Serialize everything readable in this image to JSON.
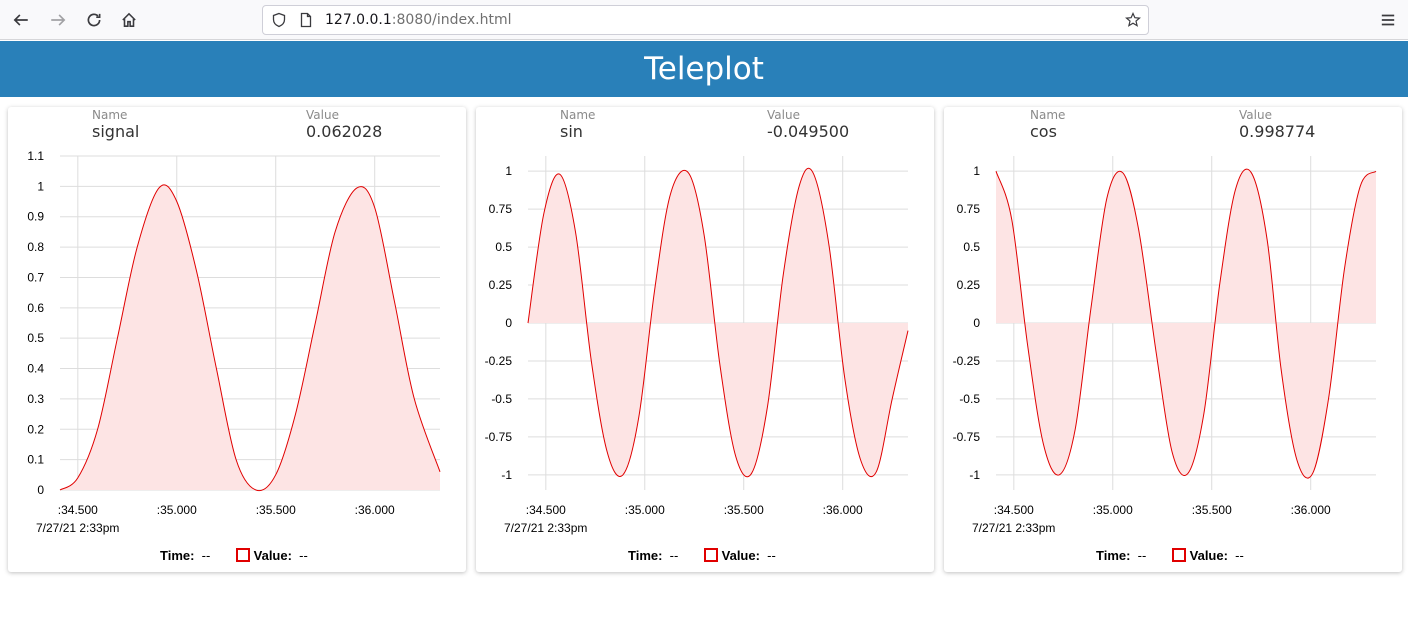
{
  "browser": {
    "url_host": "127.0.0.1",
    "url_rest": ":8080/index.html",
    "icons": [
      "back-arrow-icon",
      "forward-arrow-icon",
      "reload-icon",
      "home-icon",
      "shield-icon",
      "page-icon",
      "star-icon",
      "menu-icon"
    ]
  },
  "header": {
    "title": "Teleplot"
  },
  "panels": [
    {
      "name_label": "Name",
      "name": "signal",
      "value_label": "Value",
      "value": "0.062028",
      "legend": {
        "time_label": "Time:",
        "time_value": "--",
        "value_label": "Value:",
        "value_value": "--"
      }
    },
    {
      "name_label": "Name",
      "name": "sin",
      "value_label": "Value",
      "value": "-0.049500",
      "legend": {
        "time_label": "Time:",
        "time_value": "--",
        "value_label": "Value:",
        "value_value": "--"
      }
    },
    {
      "name_label": "Name",
      "name": "cos",
      "value_label": "Value",
      "value": "0.998774",
      "legend": {
        "time_label": "Time:",
        "time_value": "--",
        "value_label": "Value:",
        "value_value": "--"
      }
    }
  ],
  "colors": {
    "header": "#2980b9",
    "series_line": "#e00000",
    "series_fill": "#fde4e4",
    "grid": "#dddddd"
  },
  "chart_data": [
    {
      "type": "area",
      "title": "signal",
      "x_ticks": [
        ":34.500",
        ":35.000",
        ":35.500",
        ":36.000"
      ],
      "x_date_label": "7/27/21 2:33pm",
      "y_ticks": [
        "0",
        "0.1",
        "0.2",
        "0.3",
        "0.4",
        "0.5",
        "0.6",
        "0.7",
        "0.8",
        "0.9",
        "1",
        "1.1"
      ],
      "ylim": [
        0,
        1.1
      ],
      "xlim": [
        34.41,
        36.33
      ],
      "grid": true,
      "series": [
        {
          "x": [
            34.41,
            34.5,
            34.6,
            34.7,
            34.8,
            34.91,
            35.0,
            35.1,
            35.2,
            35.3,
            35.4,
            35.5,
            35.6,
            35.7,
            35.8,
            35.91,
            36.0,
            36.1,
            36.2,
            36.33
          ],
          "y": [
            0.0,
            0.04,
            0.2,
            0.5,
            0.8,
            0.995,
            0.95,
            0.72,
            0.4,
            0.1,
            0.0,
            0.05,
            0.25,
            0.55,
            0.85,
            0.995,
            0.93,
            0.62,
            0.3,
            0.06
          ]
        }
      ]
    },
    {
      "type": "area",
      "title": "sin",
      "x_ticks": [
        ":34.500",
        ":35.000",
        ":35.500",
        ":36.000"
      ],
      "x_date_label": "7/27/21 2:33pm",
      "y_ticks": [
        "-1",
        "-0.75",
        "-0.5",
        "-0.25",
        "0",
        "0.25",
        "0.5",
        "0.75",
        "1"
      ],
      "ylim": [
        -1.1,
        1.1
      ],
      "xlim": [
        34.41,
        36.33
      ],
      "grid": true,
      "series": [
        {
          "x": [
            34.41,
            34.49,
            34.57,
            34.65,
            34.73,
            34.81,
            34.89,
            34.97,
            35.05,
            35.13,
            35.22,
            35.3,
            35.38,
            35.46,
            35.54,
            35.62,
            35.7,
            35.78,
            35.85,
            35.93,
            36.01,
            36.09,
            36.17,
            36.25,
            36.33
          ],
          "y": [
            0.0,
            0.72,
            0.98,
            0.6,
            -0.25,
            -0.85,
            -1.0,
            -0.62,
            0.22,
            0.85,
            0.99,
            0.58,
            -0.28,
            -0.88,
            -0.99,
            -0.55,
            0.32,
            0.9,
            0.99,
            0.52,
            -0.36,
            -0.9,
            -0.98,
            -0.5,
            -0.05
          ]
        }
      ]
    },
    {
      "type": "area",
      "title": "cos",
      "x_ticks": [
        ":34.500",
        ":35.000",
        ":35.500",
        ":36.000"
      ],
      "x_date_label": "7/27/21 2:33pm",
      "y_ticks": [
        "-1",
        "-0.75",
        "-0.5",
        "-0.25",
        "0",
        "0.25",
        "0.5",
        "0.75",
        "1"
      ],
      "ylim": [
        -1.1,
        1.1
      ],
      "xlim": [
        34.41,
        36.33
      ],
      "grid": true,
      "series": [
        {
          "x": [
            34.41,
            34.49,
            34.57,
            34.65,
            34.73,
            34.81,
            34.89,
            34.97,
            35.05,
            35.13,
            35.22,
            35.3,
            35.38,
            35.46,
            35.54,
            35.62,
            35.7,
            35.78,
            35.85,
            35.93,
            36.01,
            36.09,
            36.17,
            36.25,
            36.33
          ],
          "y": [
            1.0,
            0.68,
            -0.15,
            -0.8,
            -1.0,
            -0.7,
            0.1,
            0.82,
            0.99,
            0.62,
            -0.2,
            -0.85,
            -0.99,
            -0.6,
            0.25,
            0.88,
            0.99,
            0.55,
            -0.3,
            -0.9,
            -0.99,
            -0.5,
            0.35,
            0.9,
            0.999
          ]
        }
      ]
    }
  ]
}
